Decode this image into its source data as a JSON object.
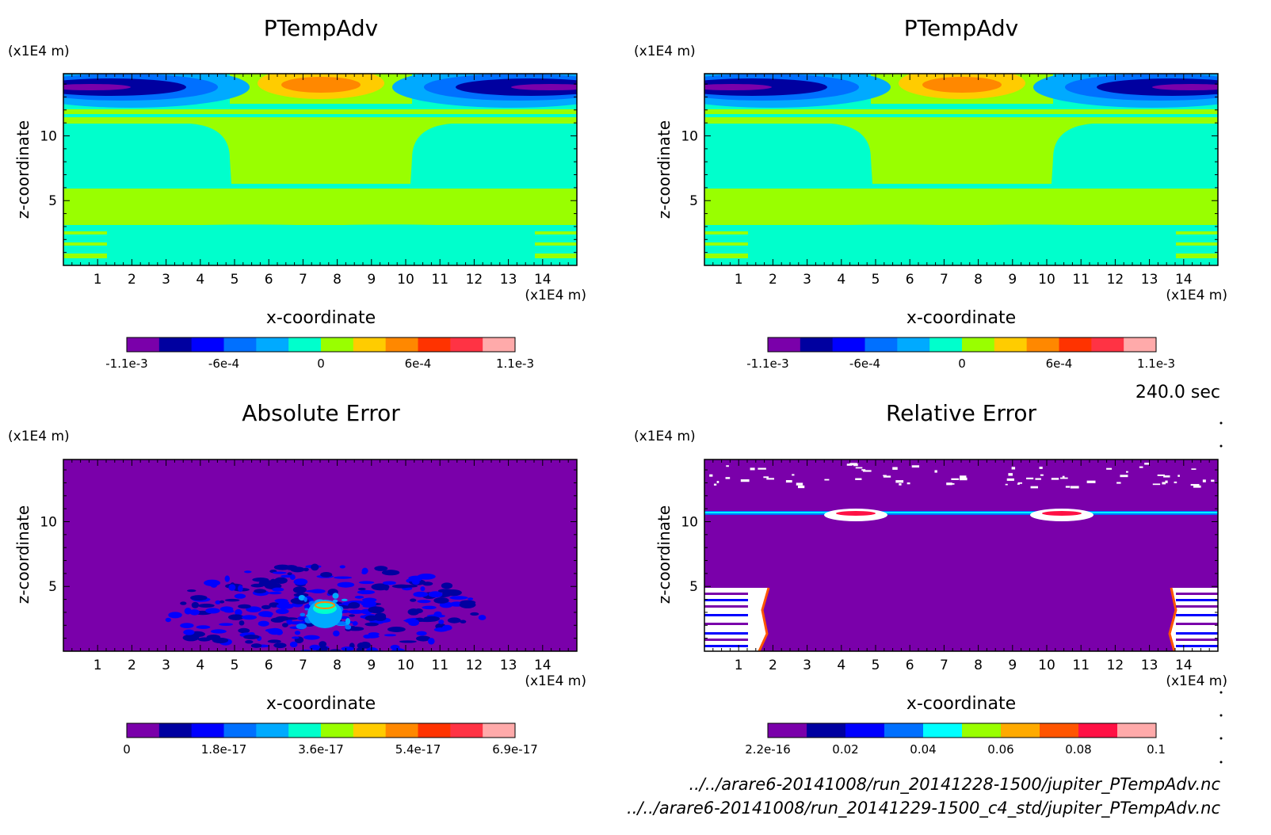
{
  "chart_data": [
    {
      "type": "heatmap",
      "title": "PTempAdv",
      "xlabel": "x-coordinate",
      "ylabel": "z-coordinate",
      "x_unit": "(x1E4 m)",
      "y_unit": "(x1E4 m)",
      "xlim": [
        0,
        15
      ],
      "ylim": [
        0,
        14.8
      ],
      "x_ticks": [
        "1",
        "2",
        "3",
        "4",
        "5",
        "6",
        "7",
        "8",
        "9",
        "10",
        "11",
        "12",
        "13",
        "14"
      ],
      "y_ticks": [
        "5",
        "10"
      ],
      "colorbar": {
        "colors": [
          "#7a00aa",
          "#0000a0",
          "#0000ff",
          "#0070ff",
          "#00aaff",
          "#00ffcc",
          "#99ff00",
          "#ffcc00",
          "#ff8800",
          "#ff3300",
          "#ff3344",
          "#ffaaaa"
        ],
        "labels": [
          "-1.1e-3",
          "-6e-4",
          "0",
          "6e-4",
          "1.1e-3"
        ],
        "range": [
          -0.0011,
          0.0011
        ]
      },
      "legend": "bottom"
    },
    {
      "type": "heatmap",
      "title": "PTempAdv",
      "xlabel": "x-coordinate",
      "ylabel": "z-coordinate",
      "x_unit": "(x1E4 m)",
      "y_unit": "(x1E4 m)",
      "xlim": [
        0,
        15
      ],
      "ylim": [
        0,
        14.8
      ],
      "x_ticks": [
        "1",
        "2",
        "3",
        "4",
        "5",
        "6",
        "7",
        "8",
        "9",
        "10",
        "11",
        "12",
        "13",
        "14"
      ],
      "y_ticks": [
        "5",
        "10"
      ],
      "colorbar": {
        "colors": [
          "#7a00aa",
          "#0000a0",
          "#0000ff",
          "#0070ff",
          "#00aaff",
          "#00ffcc",
          "#99ff00",
          "#ffcc00",
          "#ff8800",
          "#ff3300",
          "#ff3344",
          "#ffaaaa"
        ],
        "labels": [
          "-1.1e-3",
          "-6e-4",
          "0",
          "6e-4",
          "1.1e-3"
        ],
        "range": [
          -0.0011,
          0.0011
        ]
      },
      "legend": "bottom"
    },
    {
      "type": "heatmap",
      "title": "Absolute Error",
      "xlabel": "x-coordinate",
      "ylabel": "z-coordinate",
      "x_unit": "(x1E4 m)",
      "y_unit": "(x1E4 m)",
      "xlim": [
        0,
        15
      ],
      "ylim": [
        0,
        14.8
      ],
      "x_ticks": [
        "1",
        "2",
        "3",
        "4",
        "5",
        "6",
        "7",
        "8",
        "9",
        "10",
        "11",
        "12",
        "13",
        "14"
      ],
      "y_ticks": [
        "5",
        "10"
      ],
      "colorbar": {
        "colors": [
          "#7a00aa",
          "#0000a0",
          "#0000ff",
          "#0070ff",
          "#00aaff",
          "#00ffcc",
          "#99ff00",
          "#ffcc00",
          "#ff8800",
          "#ff3300",
          "#ff3344",
          "#ffaaaa"
        ],
        "labels": [
          "0",
          "1.8e-17",
          "3.6e-17",
          "5.4e-17",
          "6.9e-17"
        ],
        "range": [
          0,
          6.9e-17
        ]
      },
      "legend": "bottom"
    },
    {
      "type": "heatmap",
      "title": "Relative Error",
      "xlabel": "x-coordinate",
      "ylabel": "z-coordinate",
      "x_unit": "(x1E4 m)",
      "y_unit": "(x1E4 m)",
      "xlim": [
        0,
        15
      ],
      "ylim": [
        0,
        14.8
      ],
      "x_ticks": [
        "1",
        "2",
        "3",
        "4",
        "5",
        "6",
        "7",
        "8",
        "9",
        "10",
        "11",
        "12",
        "13",
        "14"
      ],
      "y_ticks": [
        "5",
        "10"
      ],
      "colorbar": {
        "colors": [
          "#7a00aa",
          "#0000a0",
          "#0000ff",
          "#0070ff",
          "#00ffff",
          "#99ff00",
          "#ffaa00",
          "#ff5500",
          "#ff1144",
          "#ffaaaa"
        ],
        "labels": [
          "2.2e-16",
          "0.02",
          "0.04",
          "0.06",
          "0.08",
          "0.1"
        ],
        "range": [
          2.2e-16,
          0.1
        ]
      },
      "legend": "bottom"
    }
  ],
  "time_label": "240.0 sec",
  "footer": {
    "file1": "../../arare6-20141008/run_20141228-1500/jupiter_PTempAdv.nc",
    "file2": "../../arare6-20141008/run_20141229-1500_c4_std/jupiter_PTempAdv.nc"
  }
}
